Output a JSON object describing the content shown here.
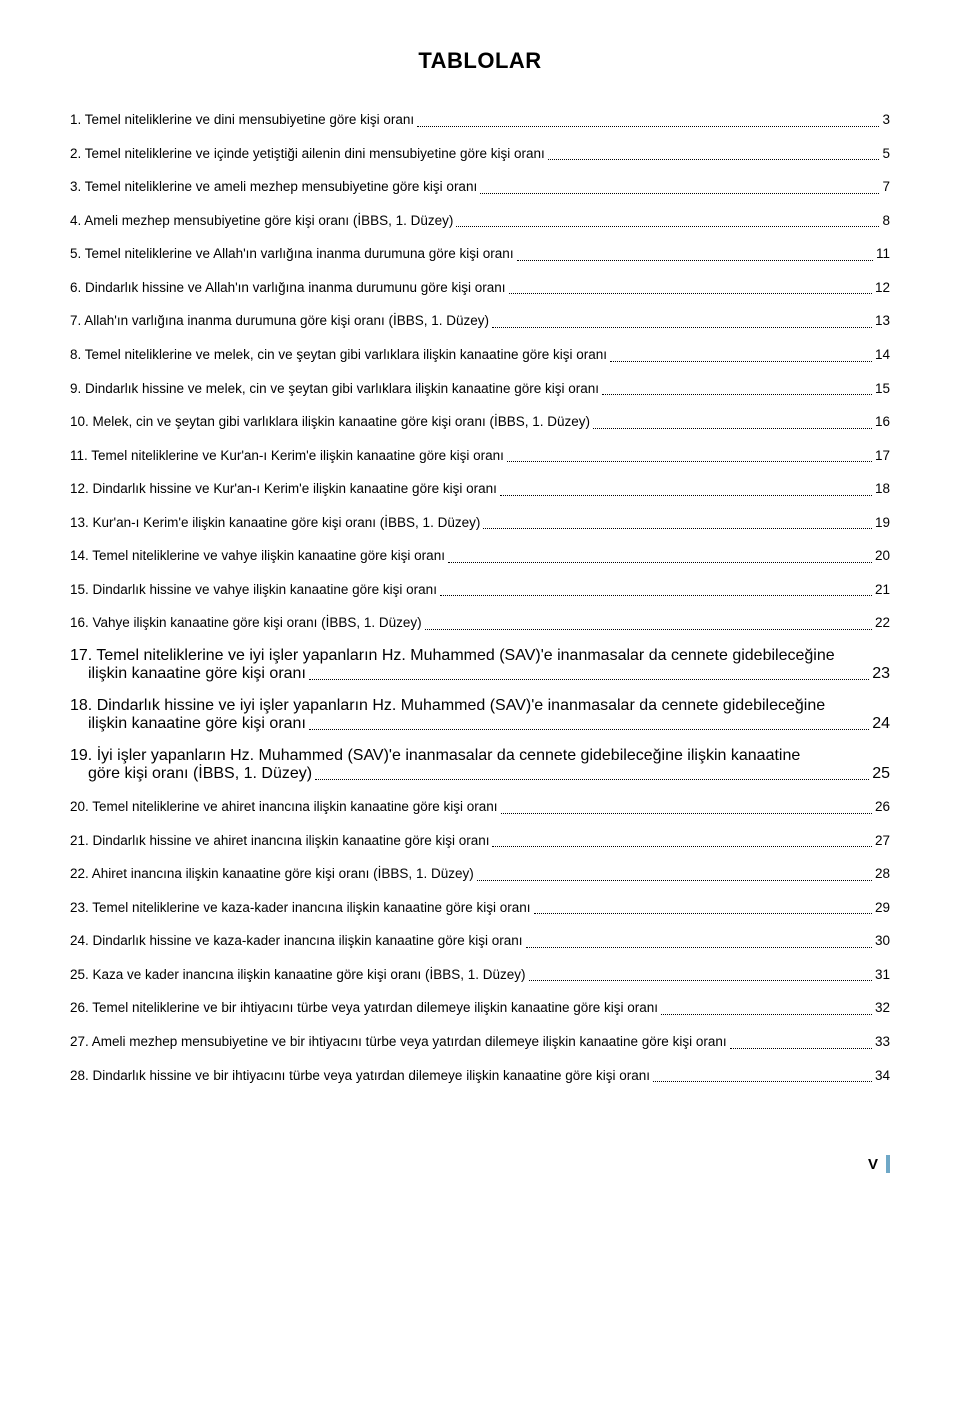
{
  "title": "TABLOLAR",
  "entries": [
    {
      "text": "1. Temel niteliklerine ve dini mensubiyetine göre kişi oranı",
      "page": "3"
    },
    {
      "text": "2. Temel niteliklerine ve içinde yetiştiği ailenin dini mensubiyetine göre kişi oranı",
      "page": "5"
    },
    {
      "text": "3. Temel niteliklerine ve ameli mezhep mensubiyetine göre kişi oranı",
      "page": "7"
    },
    {
      "text": "4. Ameli mezhep mensubiyetine göre kişi oranı (İBBS, 1. Düzey)",
      "page": "8"
    },
    {
      "text": "5. Temel niteliklerine ve Allah'ın varlığına inanma durumuna göre kişi oranı",
      "page": "11"
    },
    {
      "text": "6. Dindarlık hissine ve Allah'ın varlığına inanma durumunu göre kişi oranı",
      "page": "12"
    },
    {
      "text": "7. Allah'ın varlığına inanma durumuna göre kişi oranı (İBBS, 1. Düzey)",
      "page": "13"
    },
    {
      "text": "8. Temel niteliklerine ve melek, cin ve şeytan gibi varlıklara ilişkin kanaatine göre kişi oranı",
      "page": "14"
    },
    {
      "text": "9. Dindarlık hissine ve melek, cin ve şeytan gibi varlıklara ilişkin kanaatine göre kişi oranı",
      "page": "15"
    },
    {
      "text": "10. Melek, cin ve şeytan gibi varlıklara ilişkin kanaatine göre kişi oranı (İBBS, 1. Düzey)",
      "page": "16"
    },
    {
      "text": "11. Temel niteliklerine ve Kur'an-ı Kerim'e ilişkin kanaatine göre kişi oranı",
      "page": "17"
    },
    {
      "text": "12. Dindarlık hissine ve Kur'an-ı Kerim'e ilişkin kanaatine göre kişi oranı",
      "page": "18"
    },
    {
      "text": "13. Kur'an-ı Kerim'e ilişkin kanaatine göre kişi oranı (İBBS, 1. Düzey)",
      "page": "19"
    },
    {
      "text": "14. Temel niteliklerine ve vahye ilişkin kanaatine göre kişi oranı",
      "page": "20"
    },
    {
      "text": "15. Dindarlık hissine ve vahye ilişkin kanaatine göre kişi oranı",
      "page": "21"
    },
    {
      "text": "16. Vahye ilişkin kanaatine göre kişi oranı (İBBS, 1. Düzey)",
      "page": "22"
    },
    {
      "text_l1": "17. Temel niteliklerine ve iyi işler yapanların Hz. Muhammed (SAV)'e inanmasalar da cennete gidebileceğine",
      "text_l2": "ilişkin kanaatine göre kişi oranı",
      "page": "23",
      "multiline": true
    },
    {
      "text_l1": "18. Dindarlık hissine ve iyi işler yapanların Hz. Muhammed (SAV)'e inanmasalar da cennete gidebileceğine",
      "text_l2": "ilişkin kanaatine göre kişi oranı",
      "page": "24",
      "multiline": true
    },
    {
      "text_l1": "19. İyi işler yapanların Hz. Muhammed (SAV)'e inanmasalar da cennete gidebileceğine ilişkin kanaatine",
      "text_l2": "göre kişi oranı (İBBS, 1. Düzey)",
      "page": "25",
      "multiline": true
    },
    {
      "text": "20. Temel niteliklerine ve ahiret inancına ilişkin kanaatine göre kişi oranı",
      "page": "26"
    },
    {
      "text": "21. Dindarlık hissine ve ahiret inancına ilişkin kanaatine göre kişi oranı",
      "page": "27"
    },
    {
      "text": "22. Ahiret inancına ilişkin kanaatine göre kişi oranı (İBBS, 1. Düzey)",
      "page": "28"
    },
    {
      "text": "23. Temel niteliklerine ve kaza-kader inancına ilişkin kanaatine göre kişi oranı",
      "page": "29"
    },
    {
      "text": "24. Dindarlık hissine ve kaza-kader inancına ilişkin kanaatine göre kişi oranı",
      "page": "30"
    },
    {
      "text": "25. Kaza ve kader inancına ilişkin kanaatine göre kişi oranı (İBBS, 1. Düzey)",
      "page": "31"
    },
    {
      "text": "26. Temel niteliklerine ve bir ihtiyacını türbe veya yatırdan dilemeye ilişkin kanaatine göre kişi oranı",
      "page": "32"
    },
    {
      "text": "27. Ameli mezhep mensubiyetine ve bir ihtiyacını türbe veya yatırdan dilemeye ilişkin kanaatine göre kişi oranı",
      "page": "33"
    },
    {
      "text": "28. Dindarlık hissine ve bir ihtiyacını türbe veya yatırdan dilemeye ilişkin kanaatine göre kişi oranı",
      "page": "34"
    }
  ],
  "footer_page": "V",
  "colors": {
    "text": "#000000",
    "background": "#ffffff",
    "mark": "#6fa8c7"
  }
}
